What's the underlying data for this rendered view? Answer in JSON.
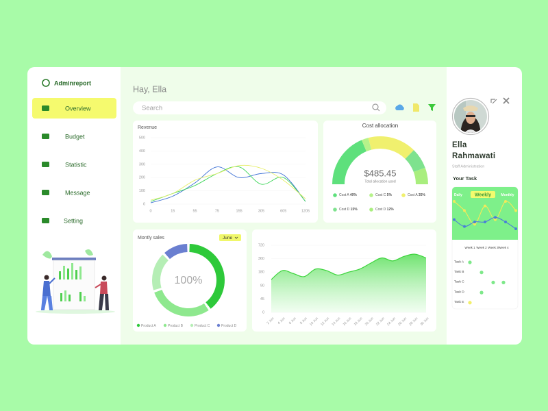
{
  "brand": "Adminreport",
  "nav": [
    "Overview",
    "Budget",
    "Statistic",
    "Message",
    "Setting"
  ],
  "nav_active": 0,
  "greeting": "Hay, Ella",
  "search": "Search",
  "profile": {
    "name": "Ella Rahmawati",
    "role": "Staff Administration"
  },
  "task": {
    "title": "Your Task",
    "tabs": [
      "Daily",
      "Weekly",
      "Monthly"
    ],
    "active_tab": 1,
    "weeks": [
      "Week 1",
      "Week 2",
      "Week 3",
      "Week 4"
    ],
    "rows": [
      {
        "label": "Task A",
        "done": [
          true,
          false,
          false,
          false
        ],
        "color": "#7ee88a"
      },
      {
        "label": "Task B",
        "done": [
          false,
          true,
          false,
          false
        ],
        "color": "#7ee88a"
      },
      {
        "label": "Task C",
        "done": [
          false,
          false,
          true,
          true
        ],
        "color": "#7ee88a"
      },
      {
        "label": "Task D",
        "done": [
          false,
          true,
          false,
          false
        ],
        "color": "#7ee88a"
      },
      {
        "label": "Task E",
        "done": [
          true,
          false,
          false,
          false
        ],
        "color": "#f2ef6a"
      }
    ]
  },
  "chart_data": [
    {
      "type": "line",
      "title": "Revenue",
      "categories": [
        "0",
        "15",
        "55",
        "75",
        "155",
        "305",
        "605",
        "1205"
      ],
      "ylim": [
        0,
        500
      ],
      "yticks": [
        0,
        100,
        200,
        300,
        400,
        500
      ],
      "series": [
        {
          "color": "#3b6fd4",
          "values": [
            10,
            60,
            160,
            280,
            200,
            230,
            220,
            20
          ]
        },
        {
          "color": "#3fd65a",
          "values": [
            20,
            80,
            140,
            230,
            280,
            150,
            200,
            20
          ]
        },
        {
          "color": "#e6ee6a",
          "values": [
            30,
            80,
            180,
            230,
            290,
            270,
            180,
            40
          ]
        }
      ]
    },
    {
      "type": "gauge",
      "title": "Cost allocation",
      "center_label": "$485.45",
      "subtitle": "Total allocation used",
      "categories": [
        "Cost A",
        "Cost C",
        "Cost A",
        "Cost D",
        "Cost D"
      ],
      "values": [
        40,
        5,
        35,
        15,
        12
      ],
      "value_labels": [
        "40%",
        "5%",
        "35%",
        "15%",
        "12%"
      ],
      "colors": [
        "#5ee07c",
        "#b6f28a",
        "#f0f06e",
        "#7ee28e",
        "#a9ee7e"
      ]
    },
    {
      "type": "donut",
      "title": "Montly sales",
      "center_label": "100%",
      "filter": "June",
      "categories": [
        "Product A",
        "Product B",
        "Product C",
        "Product D"
      ],
      "values": [
        40,
        30,
        18,
        12
      ],
      "colors": [
        "#2ec93a",
        "#8ee88e",
        "#b5eeb5",
        "#6a7fd0"
      ]
    },
    {
      "type": "area",
      "categories": [
        "2 Jun",
        "4 Jun",
        "6 Jun",
        "8 Jun",
        "10 Jun",
        "12 Jun",
        "14 Jun",
        "16 Jun",
        "18 Jun",
        "20 Jun",
        "22 Jun",
        "24 Jun",
        "26 Jun",
        "28 Jun",
        "30 Jun"
      ],
      "values": [
        130,
        200,
        170,
        150,
        220,
        200,
        160,
        180,
        220,
        300,
        380,
        330,
        420,
        480,
        380
      ],
      "ylim": [
        0,
        720
      ],
      "yticks": [
        0,
        45,
        90,
        180,
        360,
        720
      ],
      "color": "#3bd43b"
    },
    {
      "type": "line",
      "series": [
        {
          "color": "#f2ea5a",
          "values": [
            7,
            5,
            2,
            6,
            3,
            7,
            5
          ]
        },
        {
          "color": "#4a7fd8",
          "values": [
            3,
            1.5,
            2.5,
            2.5,
            3.5,
            2.5,
            1
          ]
        }
      ]
    }
  ]
}
